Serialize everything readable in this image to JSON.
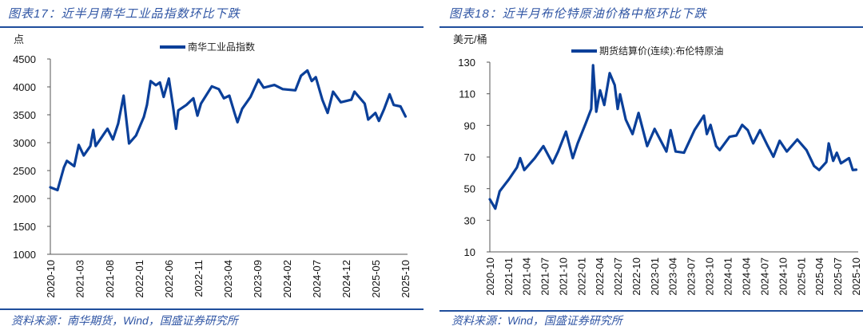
{
  "colors": {
    "title": "#2f55a4",
    "rule": "#1f4e9c",
    "series": "#0a3f99",
    "axis": "#555555"
  },
  "left": {
    "title": "图表17：近半月南华工业品指数环比下跌",
    "source": "资料来源：南华期货，Wind，国盛证券研究所"
  },
  "right": {
    "title": "图表18：近半月布伦特原油价格中枢环比下跌",
    "source": "资料来源：Wind，国盛证券研究所"
  },
  "chart_data": [
    {
      "type": "line",
      "ylabel": "点",
      "ylim": [
        1000,
        4500
      ],
      "xlim": [
        "2020-10-01",
        "2025-10-05"
      ],
      "grid": false,
      "legend_position": "top-center",
      "yticks": [
        "4500",
        "4000",
        "3500",
        "3000",
        "2500",
        "2000",
        "1500",
        "1000"
      ],
      "xticks": [
        "2020-10",
        "2021-03",
        "2021-08",
        "2022-01",
        "2022-06",
        "2022-11",
        "2023-04",
        "2023-09",
        "2024-02",
        "2024-07",
        "2024-12",
        "2025-05",
        "2025-10"
      ],
      "series": [
        {
          "name": "南华工业品指数",
          "x": [
            "2020-10-01",
            "2020-11-07",
            "2020-12-10",
            "2020-12-25",
            "2021-02-01",
            "2021-02-24",
            "2021-03-22",
            "2021-04-25",
            "2021-05-10",
            "2021-05-22",
            "2021-07-22",
            "2021-08-19",
            "2021-09-15",
            "2021-10-13",
            "2021-11-10",
            "2021-12-16",
            "2022-01-25",
            "2022-02-10",
            "2022-03-01",
            "2022-03-28",
            "2022-04-18",
            "2022-05-07",
            "2022-06-03",
            "2022-06-25",
            "2022-07-10",
            "2022-07-22",
            "2022-09-01",
            "2022-10-07",
            "2022-10-28",
            "2022-11-15",
            "2023-01-10",
            "2023-02-15",
            "2023-03-13",
            "2023-04-10",
            "2023-05-07",
            "2023-05-22",
            "2023-06-15",
            "2023-07-28",
            "2023-09-07",
            "2023-10-04",
            "2023-11-28",
            "2024-01-10",
            "2024-03-15",
            "2024-04-13",
            "2024-05-16",
            "2024-06-07",
            "2024-06-28",
            "2024-08-01",
            "2024-08-28",
            "2024-09-25",
            "2024-11-04",
            "2024-12-28",
            "2025-01-13",
            "2025-03-07",
            "2025-03-25",
            "2025-05-01",
            "2025-05-19",
            "2025-06-15",
            "2025-07-13",
            "2025-08-03",
            "2025-09-07",
            "2025-10-03"
          ],
          "y": [
            2200,
            2150,
            2557,
            2675,
            2580,
            2960,
            2770,
            2940,
            3228,
            2940,
            3250,
            3057,
            3343,
            3843,
            2985,
            3128,
            3460,
            3676,
            4104,
            4030,
            4080,
            3820,
            4150,
            3630,
            3250,
            3580,
            3676,
            3795,
            3485,
            3700,
            4010,
            3960,
            3795,
            3843,
            3533,
            3367,
            3605,
            3820,
            4130,
            3985,
            4035,
            3960,
            3938,
            4200,
            4295,
            4104,
            4175,
            3770,
            3533,
            3914,
            3725,
            3770,
            3914,
            3700,
            3414,
            3533,
            3390,
            3605,
            3867,
            3676,
            3650,
            3470
          ]
        }
      ]
    },
    {
      "type": "line",
      "ylabel": "美元/桶",
      "ylim": [
        10,
        130
      ],
      "xlim": [
        "2020-10-01",
        "2025-10-05"
      ],
      "grid": false,
      "legend_position": "top-center",
      "yticks": [
        "130",
        "110",
        "90",
        "70",
        "50",
        "30",
        "10"
      ],
      "xticks": [
        "2020-10",
        "2021-01",
        "2021-04",
        "2021-07",
        "2021-10",
        "2022-01",
        "2022-04",
        "2022-07",
        "2022-10",
        "2023-01",
        "2023-04",
        "2023-07",
        "2023-10",
        "2024-01",
        "2024-04",
        "2024-07",
        "2024-10",
        "2025-01",
        "2025-04",
        "2025-07",
        "2025-10"
      ],
      "series": [
        {
          "name": "期货结算价(连续):布伦特原油",
          "x": [
            "2020-10-01",
            "2020-10-28",
            "2020-11-19",
            "2021-01-04",
            "2021-02-13",
            "2021-03-01",
            "2021-03-22",
            "2021-05-13",
            "2021-06-25",
            "2021-08-10",
            "2021-09-07",
            "2021-10-16",
            "2021-11-19",
            "2021-12-13",
            "2022-01-22",
            "2022-02-19",
            "2022-02-28",
            "2022-03-16",
            "2022-04-04",
            "2022-04-25",
            "2022-05-22",
            "2022-06-16",
            "2022-07-01",
            "2022-07-13",
            "2022-08-10",
            "2022-09-13",
            "2022-10-13",
            "2022-11-25",
            "2023-01-01",
            "2023-03-01",
            "2023-03-22",
            "2023-04-16",
            "2023-05-28",
            "2023-07-19",
            "2023-09-04",
            "2023-09-19",
            "2023-10-07",
            "2023-11-04",
            "2023-11-22",
            "2024-01-10",
            "2024-02-13",
            "2024-03-13",
            "2024-04-10",
            "2024-05-07",
            "2024-06-10",
            "2024-07-19",
            "2024-08-16",
            "2024-09-16",
            "2024-10-22",
            "2024-12-13",
            "2025-01-28",
            "2025-03-07",
            "2025-04-01",
            "2025-05-07",
            "2025-05-19",
            "2025-06-10",
            "2025-06-28",
            "2025-07-19",
            "2025-08-28",
            "2025-09-16",
            "2025-10-03"
          ],
          "y": [
            43.3,
            37.4,
            48.3,
            55.9,
            63.4,
            69.3,
            61.8,
            69.3,
            76.9,
            66,
            73.5,
            86.1,
            69.3,
            78.6,
            91.2,
            100.4,
            128.1,
            98.7,
            112.2,
            102.9,
            123.1,
            115.5,
            100.4,
            109.7,
            93.7,
            84.5,
            97.9,
            76.9,
            87.8,
            73.5,
            87,
            73.5,
            72.7,
            87,
            96.2,
            84.5,
            90.3,
            76.9,
            74.4,
            82.8,
            83.6,
            90.3,
            87,
            78.6,
            87,
            76.9,
            70.2,
            80.3,
            73.5,
            81.1,
            74.4,
            64.3,
            61.8,
            66.8,
            78.6,
            67.6,
            72.7,
            66,
            69.3,
            61.8,
            62
          ]
        }
      ]
    }
  ]
}
